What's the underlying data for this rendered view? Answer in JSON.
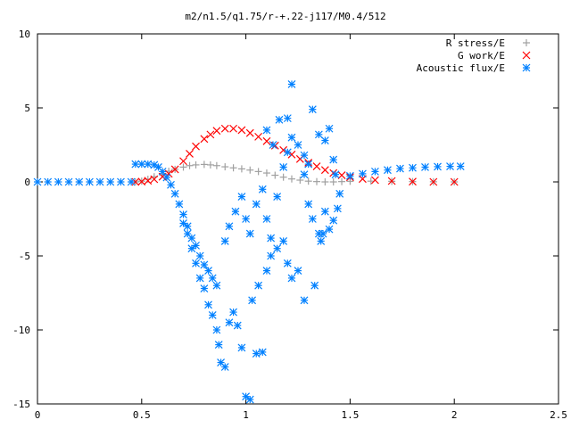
{
  "chart_data": {
    "type": "scatter",
    "title": "m2/n1.5/q1.75/r-+.22-j117/M0.4/512",
    "xlabel": "",
    "ylabel": "",
    "xlim": [
      0,
      2.5
    ],
    "ylim": [
      -15,
      10
    ],
    "xticks": [
      0,
      0.5,
      1,
      1.5,
      2,
      2.5
    ],
    "yticks": [
      10,
      5,
      0,
      -5,
      -10,
      -15
    ],
    "xtick_labels": [
      "0",
      "0.5",
      "1",
      "1.5",
      "2",
      "2.5"
    ],
    "ytick_labels": [
      "10",
      "5",
      "0",
      "-5",
      "-10",
      "-15"
    ],
    "grid": false,
    "legend_position": "top-right",
    "series": [
      {
        "name": "R stress/E",
        "marker": "+",
        "color": "#a0a0a0",
        "points": [
          [
            0.47,
            0.0
          ],
          [
            0.5,
            0.05
          ],
          [
            0.53,
            0.18
          ],
          [
            0.56,
            0.35
          ],
          [
            0.6,
            0.55
          ],
          [
            0.63,
            0.72
          ],
          [
            0.66,
            0.85
          ],
          [
            0.7,
            1.0
          ],
          [
            0.73,
            1.1
          ],
          [
            0.76,
            1.15
          ],
          [
            0.8,
            1.18
          ],
          [
            0.83,
            1.15
          ],
          [
            0.86,
            1.1
          ],
          [
            0.9,
            1.02
          ],
          [
            0.94,
            0.95
          ],
          [
            0.98,
            0.88
          ],
          [
            1.02,
            0.8
          ],
          [
            1.06,
            0.7
          ],
          [
            1.1,
            0.6
          ],
          [
            1.14,
            0.45
          ],
          [
            1.18,
            0.32
          ],
          [
            1.22,
            0.2
          ],
          [
            1.26,
            0.12
          ],
          [
            1.3,
            0.05
          ],
          [
            1.34,
            0.02
          ],
          [
            1.38,
            0.0
          ],
          [
            1.42,
            0.0
          ],
          [
            1.46,
            0.02
          ],
          [
            1.5,
            0.04
          ],
          [
            1.6,
            0.05
          ],
          [
            1.7,
            0.04
          ],
          [
            1.8,
            0.02
          ],
          [
            1.9,
            0.01
          ],
          [
            2.0,
            0.0
          ]
        ]
      },
      {
        "name": "G work/E",
        "marker": "x",
        "color": "#ff0000",
        "points": [
          [
            0.47,
            0.0
          ],
          [
            0.5,
            0.02
          ],
          [
            0.53,
            0.08
          ],
          [
            0.56,
            0.18
          ],
          [
            0.6,
            0.35
          ],
          [
            0.63,
            0.55
          ],
          [
            0.66,
            0.85
          ],
          [
            0.7,
            1.4
          ],
          [
            0.73,
            1.9
          ],
          [
            0.76,
            2.4
          ],
          [
            0.8,
            2.9
          ],
          [
            0.83,
            3.2
          ],
          [
            0.86,
            3.45
          ],
          [
            0.9,
            3.6
          ],
          [
            0.94,
            3.6
          ],
          [
            0.98,
            3.5
          ],
          [
            1.02,
            3.3
          ],
          [
            1.06,
            3.05
          ],
          [
            1.1,
            2.75
          ],
          [
            1.14,
            2.45
          ],
          [
            1.18,
            2.15
          ],
          [
            1.22,
            1.85
          ],
          [
            1.26,
            1.55
          ],
          [
            1.3,
            1.3
          ],
          [
            1.34,
            1.05
          ],
          [
            1.38,
            0.8
          ],
          [
            1.42,
            0.6
          ],
          [
            1.46,
            0.45
          ],
          [
            1.5,
            0.32
          ],
          [
            1.56,
            0.2
          ],
          [
            1.62,
            0.12
          ],
          [
            1.7,
            0.06
          ],
          [
            1.8,
            0.02
          ],
          [
            1.9,
            0.0
          ],
          [
            2.0,
            0.0
          ]
        ]
      },
      {
        "name": "Acoustic flux/E",
        "marker": "*",
        "color": "#0080ff",
        "points": [
          [
            0.47,
            1.2
          ],
          [
            0.5,
            1.2
          ],
          [
            0.53,
            1.2
          ],
          [
            0.56,
            1.15
          ],
          [
            0.58,
            1.0
          ],
          [
            0.6,
            0.7
          ],
          [
            0.62,
            0.3
          ],
          [
            0.64,
            -0.2
          ],
          [
            0.66,
            -0.8
          ],
          [
            0.68,
            -1.5
          ],
          [
            0.7,
            -2.2
          ],
          [
            0.72,
            -3.0
          ],
          [
            0.74,
            -3.8
          ],
          [
            0.76,
            -4.3
          ],
          [
            0.78,
            -5.0
          ],
          [
            0.8,
            -5.6
          ],
          [
            0.82,
            -6.0
          ],
          [
            0.84,
            -6.5
          ],
          [
            0.86,
            -7.0
          ],
          [
            0.7,
            -2.8
          ],
          [
            0.72,
            -3.5
          ],
          [
            0.74,
            -4.5
          ],
          [
            0.76,
            -5.5
          ],
          [
            0.78,
            -6.5
          ],
          [
            0.8,
            -7.2
          ],
          [
            0.82,
            -8.3
          ],
          [
            0.84,
            -9.0
          ],
          [
            0.86,
            -10.0
          ],
          [
            0.87,
            -11.0
          ],
          [
            0.88,
            -12.2
          ],
          [
            0.9,
            -12.5
          ],
          [
            0.92,
            -9.5
          ],
          [
            0.94,
            -8.8
          ],
          [
            0.96,
            -9.7
          ],
          [
            0.98,
            -11.2
          ],
          [
            1.0,
            -14.5
          ],
          [
            1.02,
            -14.7
          ],
          [
            1.05,
            -11.6
          ],
          [
            1.08,
            -11.5
          ],
          [
            1.03,
            -8.0
          ],
          [
            1.06,
            -7.0
          ],
          [
            1.1,
            -6.0
          ],
          [
            1.12,
            -5.0
          ],
          [
            1.15,
            -4.5
          ],
          [
            1.18,
            -4.0
          ],
          [
            1.2,
            -5.5
          ],
          [
            1.22,
            -6.5
          ],
          [
            1.25,
            -6.0
          ],
          [
            1.28,
            -8.0
          ],
          [
            1.33,
            -7.0
          ],
          [
            0.9,
            -4.0
          ],
          [
            0.92,
            -3.0
          ],
          [
            0.95,
            -2.0
          ],
          [
            0.98,
            -1.0
          ],
          [
            1.0,
            -2.5
          ],
          [
            1.02,
            -3.5
          ],
          [
            1.05,
            -1.5
          ],
          [
            1.08,
            -0.5
          ],
          [
            1.1,
            -2.5
          ],
          [
            1.12,
            -3.8
          ],
          [
            1.15,
            -1.0
          ],
          [
            1.18,
            1.0
          ],
          [
            1.2,
            2.0
          ],
          [
            1.22,
            3.0
          ],
          [
            1.25,
            2.5
          ],
          [
            1.28,
            0.5
          ],
          [
            1.3,
            -1.5
          ],
          [
            1.32,
            -2.5
          ],
          [
            1.35,
            -3.5
          ],
          [
            1.38,
            -2.0
          ],
          [
            1.1,
            3.5
          ],
          [
            1.13,
            2.5
          ],
          [
            1.16,
            4.2
          ],
          [
            1.2,
            4.3
          ],
          [
            1.22,
            6.6
          ],
          [
            1.28,
            1.8
          ],
          [
            1.3,
            1.2
          ],
          [
            1.32,
            4.9
          ],
          [
            1.35,
            3.2
          ],
          [
            1.38,
            2.8
          ],
          [
            1.4,
            3.6
          ],
          [
            1.42,
            1.5
          ],
          [
            1.43,
            0.5
          ],
          [
            1.45,
            -0.8
          ],
          [
            1.44,
            -1.8
          ],
          [
            1.42,
            -2.6
          ],
          [
            1.4,
            -3.2
          ],
          [
            1.37,
            -3.5
          ],
          [
            1.36,
            -4.0
          ],
          [
            1.5,
            0.4
          ],
          [
            1.56,
            0.55
          ],
          [
            1.62,
            0.7
          ],
          [
            1.68,
            0.8
          ],
          [
            1.74,
            0.9
          ],
          [
            1.8,
            0.95
          ],
          [
            1.86,
            1.0
          ],
          [
            1.92,
            1.03
          ],
          [
            1.98,
            1.05
          ],
          [
            2.03,
            1.05
          ],
          [
            0.0,
            0.0
          ],
          [
            0.05,
            0.0
          ],
          [
            0.1,
            0.0
          ],
          [
            0.15,
            0.0
          ],
          [
            0.2,
            0.0
          ],
          [
            0.25,
            0.0
          ],
          [
            0.3,
            0.0
          ],
          [
            0.35,
            0.0
          ],
          [
            0.4,
            0.0
          ],
          [
            0.45,
            0.0
          ]
        ]
      }
    ]
  }
}
